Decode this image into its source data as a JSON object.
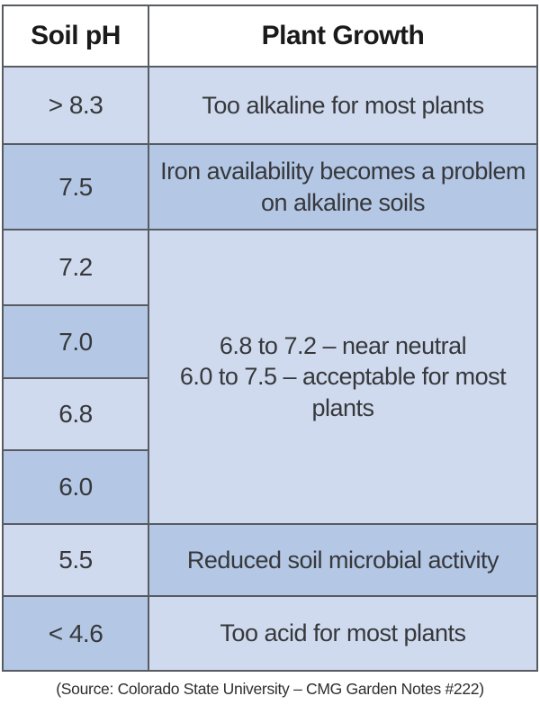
{
  "table": {
    "headers": {
      "ph": "Soil pH",
      "growth": "Plant Growth"
    },
    "rows": [
      {
        "ph": "> 8.3",
        "growth": "Too alkaline for most plants"
      },
      {
        "ph": "7.5",
        "growth": "Iron availability becomes a problem on alkaline soils"
      },
      {
        "ph": "7.2"
      },
      {
        "ph": "7.0"
      },
      {
        "ph": "6.8"
      },
      {
        "ph": "6.0"
      },
      {
        "ph": "5.5",
        "growth": "Reduced soil microbial activity"
      },
      {
        "ph": "< 4.6",
        "growth": "Too acid for most plants"
      }
    ],
    "merged_growth": "6.8 to 7.2 – near neutral\n6.0 to 7.5 – acceptable for most plants"
  },
  "footer": {
    "source": "(Source: Colorado State University – CMG Garden Notes #222)"
  },
  "colors": {
    "light_row": "#cfdaee",
    "dark_row": "#b4c7e5",
    "border": "#595b62",
    "header_bg": "#ffffff",
    "header_text": "#1a1a1a",
    "text": "#36383b"
  },
  "chart_data": {
    "type": "table",
    "title": "",
    "columns": [
      "Soil pH",
      "Plant Growth"
    ],
    "rows": [
      [
        "> 8.3",
        "Too alkaline for most plants"
      ],
      [
        "7.5",
        "Iron availability becomes a problem on alkaline soils"
      ],
      [
        "7.2",
        "6.8 to 7.2 – near neutral; 6.0 to 7.5 – acceptable for most plants"
      ],
      [
        "7.0",
        "6.8 to 7.2 – near neutral; 6.0 to 7.5 – acceptable for most plants"
      ],
      [
        "6.8",
        "6.8 to 7.2 – near neutral; 6.0 to 7.5 – acceptable for most plants"
      ],
      [
        "6.0",
        "6.8 to 7.2 – near neutral; 6.0 to 7.5 – acceptable for most plants"
      ],
      [
        "5.5",
        "Reduced soil microbial activity"
      ],
      [
        "< 4.6",
        "Too acid for most plants"
      ]
    ],
    "merged_cell": {
      "column": "Plant Growth",
      "spans_rows": [
        "7.2",
        "7.0",
        "6.8",
        "6.0"
      ],
      "text": "6.8 to 7.2 – near neutral\n6.0 to 7.5 – acceptable for most plants"
    },
    "source": "(Source: Colorado State University – CMG Garden Notes #222)",
    "legend_position": "none",
    "grid": "table-borders"
  }
}
